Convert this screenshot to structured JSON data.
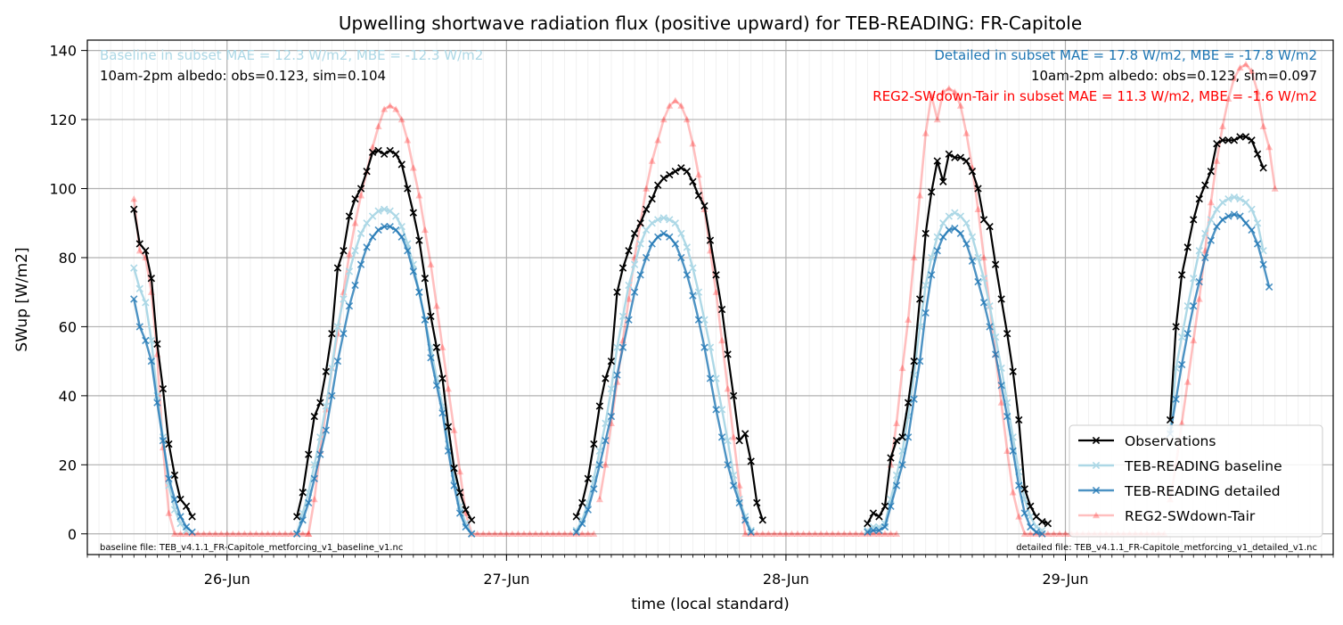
{
  "chart_data": {
    "type": "line",
    "title": "Upwelling shortwave radiation flux (positive upward) for TEB-READING: FR-Capitole",
    "xlabel": "time (local standard)",
    "ylabel": "SWup [W/m2]",
    "ylim": [
      -6,
      143
    ],
    "xlim": [
      "2016-06-25T12:00",
      "2016-06-29T23:00"
    ],
    "x_step_hours": 0.5,
    "x_ticks": [
      {
        "label": "26-Jun",
        "t": "2016-06-26T00:00"
      },
      {
        "label": "27-Jun",
        "t": "2016-06-27T00:00"
      },
      {
        "label": "28-Jun",
        "t": "2016-06-28T00:00"
      },
      {
        "label": "29-Jun",
        "t": "2016-06-29T00:00"
      }
    ],
    "y_ticks": [
      0,
      20,
      40,
      60,
      80,
      100,
      120,
      140
    ],
    "grid": true,
    "legend_position": "lower-right",
    "annotations": {
      "baseline_stats": "Baseline in subset MAE = 12.3 W/m2, MBE = -12.3 W/m2",
      "baseline_albedo": "10am-2pm albedo: obs=0.123, sim=0.104",
      "detailed_stats": "Detailed in subset MAE = 17.8 W/m2, MBE = -17.8 W/m2",
      "detailed_albedo": "10am-2pm albedo: obs=0.123, sim=0.097",
      "reg2_stats": "REG2-SWdown-Tair in subset MAE = 11.3 W/m2, MBE = -1.6 W/m2",
      "baseline_file": "baseline file: TEB_v4.1.1_FR-Capitole_metforcing_v1_baseline_v1.nc",
      "detailed_file": "detailed file: TEB_v4.1.1_FR-Capitole_metforcing_v1_detailed_v1.nc"
    },
    "series": [
      {
        "name": "Observations",
        "color": "#000000",
        "alpha": 1.0,
        "width": 2.2,
        "marker": "x",
        "segments": [
          {
            "start": "2016-06-25T16:00",
            "values": [
              94,
              84,
              82,
              74,
              55,
              42,
              26,
              17,
              10,
              8,
              5
            ]
          },
          {
            "start": "2016-06-26T06:00",
            "values": [
              5,
              12,
              23,
              34,
              38,
              47,
              58,
              77,
              82,
              92,
              97,
              100,
              105,
              110.5,
              111,
              110,
              111,
              110,
              107,
              100,
              93,
              85,
              74,
              63,
              54,
              45,
              31,
              19,
              12,
              7,
              4
            ]
          },
          {
            "start": "2016-06-27T06:00",
            "values": [
              5,
              9,
              16,
              26,
              37,
              45,
              50,
              70,
              77,
              82,
              87,
              90,
              94,
              97,
              101,
              103,
              104,
              105,
              106,
              105,
              102,
              98,
              95,
              85,
              75,
              65,
              52,
              40,
              27,
              29,
              21,
              9,
              4
            ]
          },
          {
            "start": "2016-06-28T07:00",
            "values": [
              3,
              6,
              5,
              8,
              22,
              27,
              28,
              38,
              50,
              68,
              87,
              99,
              108,
              102,
              110,
              109,
              109,
              108,
              105,
              100,
              91,
              89,
              78,
              68,
              58,
              47,
              33,
              13,
              8,
              5,
              3.5,
              3
            ]
          },
          {
            "start": "2016-06-29T09:00",
            "values": [
              33,
              60,
              75,
              83,
              91,
              97,
              101,
              105,
              113,
              114,
              114,
              114,
              115,
              115,
              114,
              110,
              106
            ]
          }
        ]
      },
      {
        "name": "TEB-READING baseline",
        "color": "#add8e6",
        "alpha": 1.0,
        "width": 2.4,
        "marker": "x",
        "segments": [
          {
            "start": "2016-06-25T16:00",
            "values": [
              77,
              71,
              67,
              56,
              40,
              28,
              14,
              7,
              3,
              1
            ]
          },
          {
            "start": "2016-06-26T06:00",
            "values": [
              0,
              6,
              12,
              20,
              28,
              37,
              48,
              60,
              68,
              76,
              82,
              87,
              90,
              92,
              93.5,
              94,
              93.5,
              92,
              89,
              84,
              78,
              70,
              62,
              54,
              45,
              37,
              26,
              16,
              8,
              3,
              0
            ]
          },
          {
            "start": "2016-06-27T06:00",
            "values": [
              1,
              4,
              9,
              16,
              24,
              32,
              42,
              54,
              63,
              72,
              78,
              84,
              88,
              90,
              91,
              91.5,
              91,
              90,
              87,
              83,
              77,
              70,
              62,
              54,
              45,
              36,
              27,
              17,
              10,
              5,
              1
            ]
          },
          {
            "start": "2016-06-28T07:00",
            "values": [
              1,
              2,
              2,
              3,
              10,
              17,
              24,
              34,
              46,
              60,
              72,
              80,
              86,
              90,
              92,
              93,
              92,
              90,
              86,
              80,
              74,
              66,
              57,
              48,
              38,
              28,
              18,
              10,
              5,
              2,
              1
            ]
          },
          {
            "start": "2016-06-29T09:00",
            "values": [
              30,
              48,
              57,
              66,
              74,
              82,
              87,
              91,
              94,
              96,
              97,
              97.5,
              97,
              96,
              94,
              90,
              82
            ]
          }
        ]
      },
      {
        "name": "TEB-READING detailed",
        "color": "#1f77b4",
        "alpha": 0.8,
        "width": 2.4,
        "marker": "x",
        "segments": [
          {
            "start": "2016-06-25T16:00",
            "values": [
              68,
              60,
              56,
              50,
              38,
              27,
              16,
              10,
              5,
              2,
              0.5
            ]
          },
          {
            "start": "2016-06-26T06:00",
            "values": [
              0,
              4,
              9,
              16,
              23,
              30,
              40,
              50,
              58,
              66,
              72,
              78,
              83,
              86,
              88,
              89,
              89,
              88,
              86,
              82,
              76,
              70,
              62,
              51,
              43,
              35,
              24,
              14,
              6,
              2,
              0
            ]
          },
          {
            "start": "2016-06-27T06:00",
            "values": [
              0.5,
              3,
              7,
              13,
              20,
              27,
              34,
              46,
              54,
              62,
              70,
              75,
              80,
              84,
              86,
              87,
              86,
              84,
              80,
              75,
              69,
              62,
              54,
              45,
              36,
              28,
              20,
              14,
              9,
              4,
              0.5
            ]
          },
          {
            "start": "2016-06-28T07:00",
            "values": [
              0.5,
              1,
              1,
              2,
              8,
              14,
              20,
              28,
              39,
              50,
              64,
              75,
              82,
              86,
              88,
              88.5,
              87,
              84,
              79,
              73,
              67,
              60,
              52,
              43,
              34,
              24,
              14,
              6,
              2,
              0.5,
              0
            ]
          },
          {
            "start": "2016-06-29T09:00",
            "values": [
              29,
              39,
              49,
              58,
              66,
              73,
              80,
              85,
              89,
              91,
              92,
              92.5,
              92,
              90,
              88,
              84,
              78,
              71.5
            ]
          }
        ]
      },
      {
        "name": "REG2-SWdown-Tair",
        "color": "#ff0000",
        "alpha": 0.25,
        "width": 2.6,
        "marker": "triangle",
        "segments": [
          {
            "start": "2016-06-25T16:00",
            "values": [
              97,
              82,
              80,
              70,
              52,
              25,
              6,
              0,
              0,
              0,
              0,
              0,
              0,
              0,
              0,
              0,
              0,
              0,
              0,
              0,
              0,
              0,
              0,
              0,
              0,
              0,
              0,
              0,
              0,
              0,
              0
            ]
          },
          {
            "start": "2016-06-26T07:00",
            "values": [
              0,
              10,
              24,
              36,
              48,
              58,
              70,
              81,
              90,
              98,
              105,
              112,
              118,
              123,
              124,
              123,
              120,
              114,
              106,
              98,
              88,
              78,
              66,
              54,
              42,
              30,
              18,
              6,
              0,
              0,
              0,
              0,
              0,
              0,
              0,
              0,
              0,
              0,
              0,
              0,
              0,
              0,
              0,
              0,
              0,
              0,
              0,
              0,
              0,
              0
            ]
          },
          {
            "start": "2016-06-27T08:00",
            "values": [
              10,
              20,
              32,
              44,
              56,
              68,
              80,
              90,
              100,
              108,
              114,
              120,
              124,
              125.5,
              124,
              120,
              113,
              104,
              94,
              82,
              70,
              56,
              42,
              28,
              14,
              0,
              0,
              0,
              0,
              0,
              0,
              0,
              0,
              0,
              0,
              0,
              0,
              0,
              0,
              0,
              0,
              0,
              0,
              0,
              0,
              0,
              0,
              0,
              0,
              0,
              0,
              0
            ]
          },
          {
            "start": "2016-06-28T09:00",
            "values": [
              20,
              32,
              48,
              62,
              80,
              98,
              116,
              127,
              120,
              128,
              129,
              128,
              124,
              116,
              106,
              94,
              80,
              66,
              52,
              38,
              24,
              12,
              5,
              0,
              0,
              0,
              0,
              0,
              0,
              0,
              0,
              0,
              0,
              0,
              0,
              0,
              0,
              0,
              0,
              0,
              0,
              0,
              0,
              0,
              0,
              0,
              0,
              0
            ]
          },
          {
            "start": "2016-06-29T09:00",
            "values": [
              10,
              20,
              32,
              44,
              56,
              68,
              82,
              96,
              108,
              118,
              126,
              132,
              135,
              136,
              134,
              128,
              118,
              112,
              100
            ]
          }
        ]
      }
    ]
  }
}
